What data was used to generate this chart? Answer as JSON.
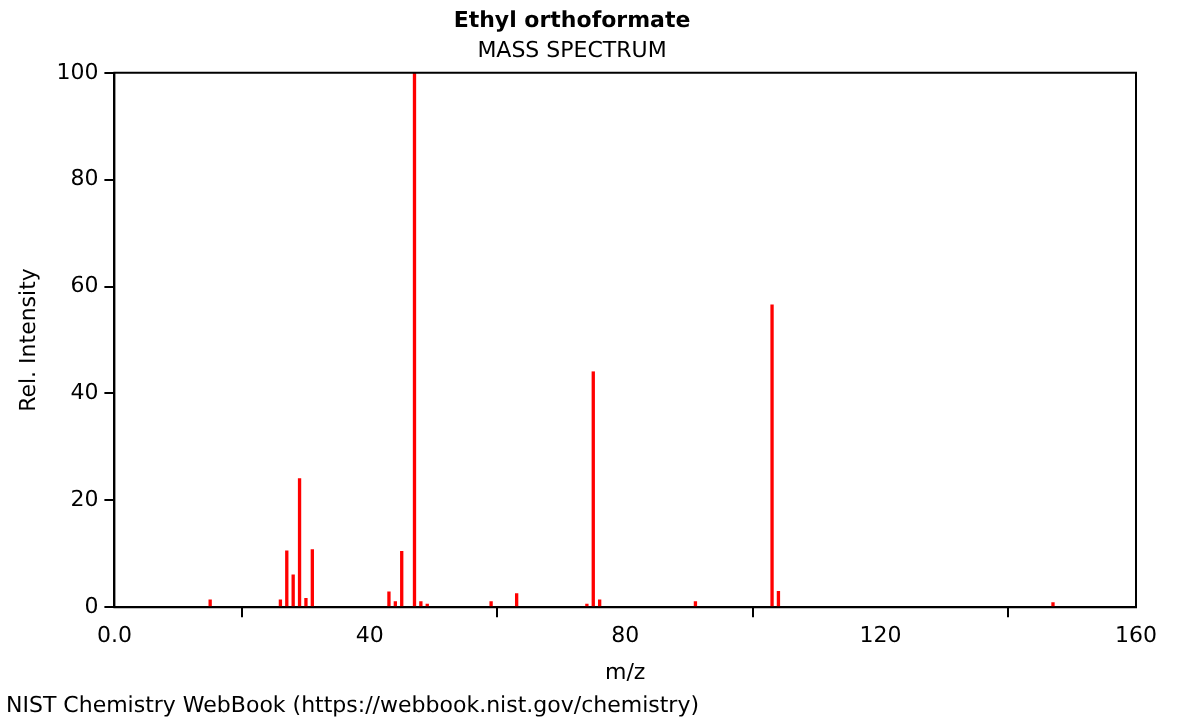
{
  "chart_data": {
    "type": "bar",
    "title": "Ethyl orthoformate",
    "subtitle": "MASS SPECTRUM",
    "xlabel": "m/z",
    "ylabel": "Rel. Intensity",
    "x": [
      15,
      26,
      27,
      28,
      29,
      30,
      31,
      43,
      44,
      45,
      47,
      48,
      49,
      59,
      63,
      74,
      75,
      76,
      91,
      103,
      104,
      147
    ],
    "values": [
      1.3,
      1.3,
      10.5,
      6,
      24,
      1.6,
      10.7,
      2.8,
      1,
      10.4,
      100,
      1,
      0.5,
      1,
      2.5,
      0.5,
      44,
      1.3,
      1,
      56.5,
      2.9,
      0.8
    ],
    "color": "#ff0000",
    "xlim": [
      0,
      160
    ],
    "xticks": [
      {
        "value": 0,
        "label": "0.0"
      },
      40,
      80,
      120,
      160
    ],
    "ylim": [
      0,
      100
    ],
    "yticks": [
      0,
      20,
      40,
      60,
      80,
      100
    ],
    "grid": false,
    "legend": false,
    "annotations": [
      "NIST Chemistry WebBook (https://webbook.nist.gov/chemistry)"
    ]
  }
}
